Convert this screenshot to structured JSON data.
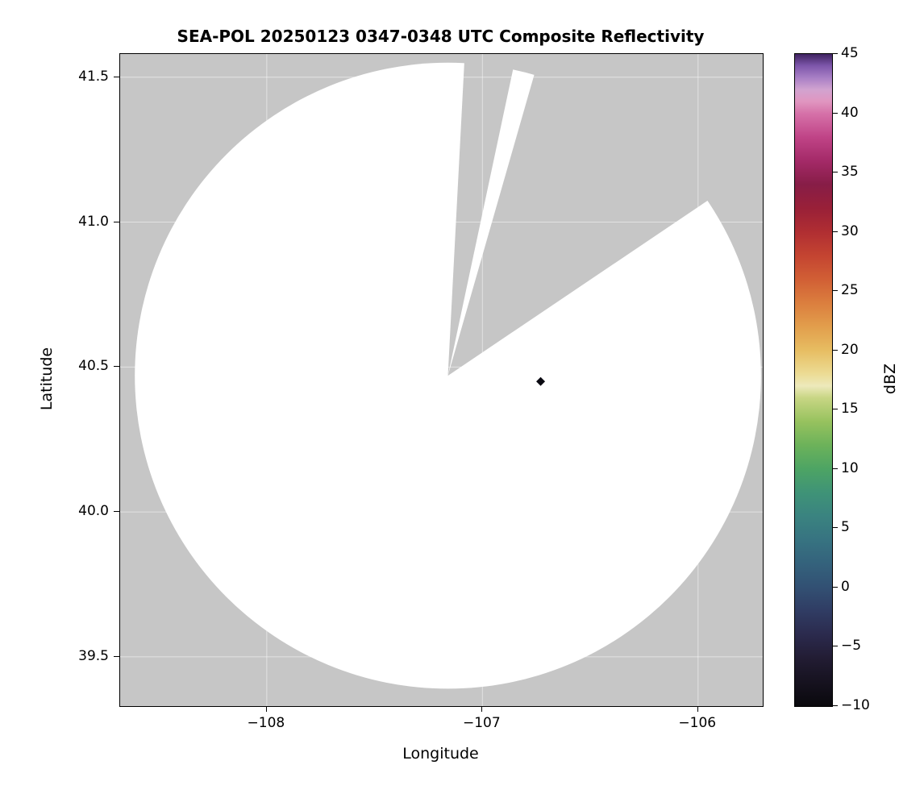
{
  "chart_data": {
    "type": "heatmap",
    "title": "SEA-POL 20250123 0347-0348 UTC Composite Reflectivity",
    "xlabel": "Longitude",
    "ylabel": "Latitude",
    "xlim": [
      -108.68,
      -105.7
    ],
    "ylim": [
      39.33,
      41.58
    ],
    "xticks": [
      -108,
      -107,
      -106
    ],
    "xtick_labels": [
      "−108",
      "−107",
      "−106"
    ],
    "yticks": [
      39.5,
      40.0,
      40.5,
      41.0,
      41.5
    ],
    "ytick_labels": [
      "39.5",
      "40.0",
      "40.5",
      "41.0",
      "41.5"
    ],
    "grid": true,
    "colors": {
      "nodata": "#c6c6c6",
      "scan_area": "#ffffff",
      "grid": "#ffffff",
      "spine": "#000000",
      "text": "#000000"
    },
    "radar": {
      "center_lon": -107.16,
      "center_lat": 40.47,
      "radius_deg_lat": 1.08,
      "missing_sectors_deg_from_north": [
        [
          3,
          12
        ],
        [
          16,
          56
        ]
      ]
    },
    "marker_point": {
      "lon": -106.73,
      "lat": 40.45,
      "shape": "diamond",
      "color": "#0b0a12"
    },
    "colorbar": {
      "label": "dBZ",
      "vmin": -10,
      "vmax": 45,
      "ticks": [
        -10,
        -5,
        0,
        5,
        10,
        15,
        20,
        25,
        30,
        35,
        40,
        45
      ],
      "tick_labels": [
        "−10",
        "−5",
        "0",
        "5",
        "10",
        "15",
        "20",
        "25",
        "30",
        "35",
        "40",
        "45"
      ],
      "colormap_name": "ChaseSpectral-like",
      "gradient_stops": [
        {
          "value": -10,
          "color": "#0a090d"
        },
        {
          "value": -8,
          "color": "#16121f"
        },
        {
          "value": -6,
          "color": "#221c33"
        },
        {
          "value": -4,
          "color": "#2b2a4d"
        },
        {
          "value": -2,
          "color": "#303c63"
        },
        {
          "value": 0,
          "color": "#325073"
        },
        {
          "value": 2,
          "color": "#34627c"
        },
        {
          "value": 4,
          "color": "#377381"
        },
        {
          "value": 6,
          "color": "#3a8380"
        },
        {
          "value": 8,
          "color": "#3f9377"
        },
        {
          "value": 10,
          "color": "#4da464"
        },
        {
          "value": 12,
          "color": "#6cb25a"
        },
        {
          "value": 14,
          "color": "#97c25e"
        },
        {
          "value": 16,
          "color": "#c8d684"
        },
        {
          "value": 17,
          "color": "#ede9bb"
        },
        {
          "value": 18,
          "color": "#ecdc95"
        },
        {
          "value": 20,
          "color": "#e7bd62"
        },
        {
          "value": 22,
          "color": "#e29e4c"
        },
        {
          "value": 24,
          "color": "#db7e3e"
        },
        {
          "value": 26,
          "color": "#d15f35"
        },
        {
          "value": 28,
          "color": "#c44431"
        },
        {
          "value": 30,
          "color": "#b02e32"
        },
        {
          "value": 32,
          "color": "#992038"
        },
        {
          "value": 34,
          "color": "#871d47"
        },
        {
          "value": 36,
          "color": "#a42a68"
        },
        {
          "value": 38,
          "color": "#c04487"
        },
        {
          "value": 40,
          "color": "#d672a9"
        },
        {
          "value": 41,
          "color": "#e096c0"
        },
        {
          "value": 42,
          "color": "#d1a3d0"
        },
        {
          "value": 43,
          "color": "#a87fc5"
        },
        {
          "value": 44,
          "color": "#7e57ab"
        },
        {
          "value": 45,
          "color": "#3f2360"
        }
      ]
    }
  }
}
